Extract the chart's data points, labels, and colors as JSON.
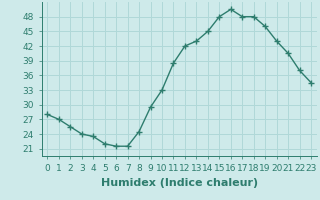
{
  "x": [
    0,
    1,
    2,
    3,
    4,
    5,
    6,
    7,
    8,
    9,
    10,
    11,
    12,
    13,
    14,
    15,
    16,
    17,
    18,
    19,
    20,
    21,
    22,
    23
  ],
  "y": [
    28,
    27,
    25.5,
    24,
    23.5,
    22,
    21.5,
    21.5,
    24.5,
    29.5,
    33,
    38.5,
    42,
    43,
    45,
    48,
    49.5,
    48,
    48,
    46,
    43,
    40.5,
    37,
    34.5
  ],
  "line_color": "#2e7d6e",
  "marker": "+",
  "marker_size": 4,
  "marker_linewidth": 1.0,
  "line_width": 1.0,
  "bg_color": "#ceeaea",
  "grid_color": "#b0d8d8",
  "xlabel": "Humidex (Indice chaleur)",
  "xlabel_fontsize": 8,
  "ylabel_ticks": [
    21,
    24,
    27,
    30,
    33,
    36,
    39,
    42,
    45,
    48
  ],
  "ylim": [
    19.5,
    51
  ],
  "xlim": [
    -0.5,
    23.5
  ],
  "tick_fontsize": 6.5
}
